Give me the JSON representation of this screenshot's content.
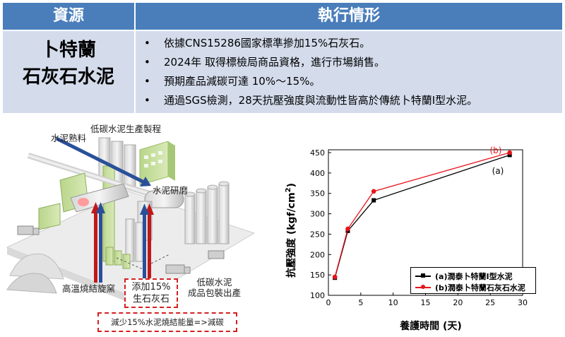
{
  "table": {
    "headers": [
      "資源",
      "執行情形"
    ],
    "resource": [
      "卜特蘭",
      "石灰石水泥"
    ],
    "bullet_symbol": "•",
    "bullets": [
      "依據CNS15286國家標準摻加15%石灰石。",
      "2024年 取得標檢局商品資格，進行市場銷售。",
      "預期產品減碳可達 10%～15%。",
      "通過SGS檢測，28天抗壓強度與流動性皆高於傳統卜特蘭I型水泥。"
    ]
  },
  "diagram": {
    "labels": {
      "process": "低碳水泥生產製程",
      "clinker": "水泥熟料",
      "grinding": "水泥研磨",
      "kiln": "高溫燒結旋窯",
      "packing": [
        "低碳水泥",
        "成品包裝出產"
      ]
    },
    "additive_box": [
      "添加15%",
      "生石灰石"
    ],
    "bottom_box": "減少15%水泥燒結能量=>減碳",
    "colors": {
      "arrow_blue": "#2a4f9a",
      "arrow_red": "#c01818",
      "dash_red": "#d62020"
    }
  },
  "chart_data": {
    "type": "line",
    "xlabel": "養護時間 (天)",
    "ylabel_main": "抗壓強度 (kgf/cm",
    "ylabel_sup": "2",
    "ylabel_close": ")",
    "xlim": [
      0,
      30
    ],
    "ylim": [
      100,
      450
    ],
    "xticks": [
      0,
      5,
      10,
      15,
      20,
      25,
      30
    ],
    "yticks": [
      100,
      150,
      200,
      250,
      300,
      350,
      400,
      450
    ],
    "series": [
      {
        "name": "(a)潤泰卜特蘭I型水泥",
        "tag": "(a)",
        "color": "#000000",
        "marker": "square",
        "x": [
          1,
          3,
          7,
          28
        ],
        "y": [
          143,
          258,
          333,
          444
        ]
      },
      {
        "name": "(b)潤泰卜特蘭石灰石水泥",
        "tag": "(b)",
        "color": "#e8141c",
        "marker": "circle",
        "x": [
          1,
          3,
          7,
          28
        ],
        "y": [
          145,
          263,
          355,
          450
        ]
      }
    ]
  }
}
